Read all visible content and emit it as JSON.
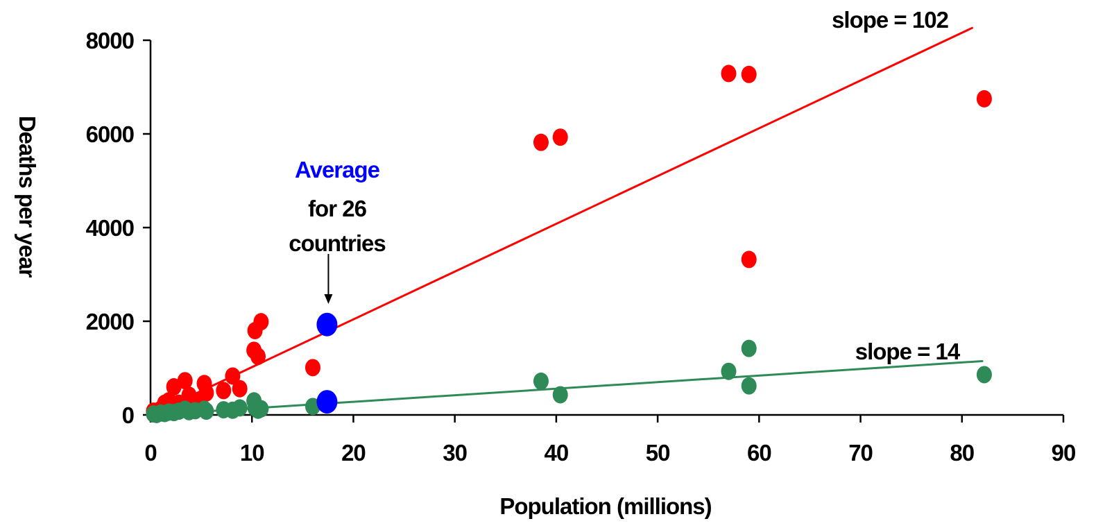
{
  "chart_data": {
    "type": "scatter",
    "xlabel": "Population (millions)",
    "ylabel": "Deaths per year",
    "xlim": [
      0,
      90
    ],
    "ylim": [
      0,
      8000
    ],
    "x_ticks": [
      "0",
      "10",
      "20",
      "30",
      "40",
      "50",
      "60",
      "70",
      "80",
      "90"
    ],
    "y_ticks": [
      "0",
      "2000",
      "4000",
      "6000",
      "8000"
    ],
    "grid": false,
    "series": [
      {
        "color": "#ff0000",
        "points": [
          [
            0.3,
            80
          ],
          [
            0.6,
            60
          ],
          [
            1.0,
            120
          ],
          [
            1.4,
            250
          ],
          [
            1.8,
            300
          ],
          [
            2.3,
            600
          ],
          [
            2.8,
            250
          ],
          [
            3.4,
            730
          ],
          [
            3.8,
            420
          ],
          [
            4.4,
            300
          ],
          [
            5.3,
            670
          ],
          [
            5.5,
            470
          ],
          [
            7.2,
            520
          ],
          [
            8.1,
            830
          ],
          [
            8.8,
            560
          ],
          [
            10.2,
            1380
          ],
          [
            10.3,
            1800
          ],
          [
            10.6,
            1250
          ],
          [
            10.9,
            1990
          ],
          [
            16.0,
            1010
          ],
          [
            38.5,
            5820
          ],
          [
            40.4,
            5930
          ],
          [
            57.0,
            7290
          ],
          [
            59.0,
            7270
          ],
          [
            59.0,
            3320
          ],
          [
            82.2,
            6750
          ]
        ],
        "fit": {
          "slope": 102,
          "x_range": [
            0.3,
            81
          ],
          "label": "slope = 102"
        }
      },
      {
        "color": "#2e8b57",
        "points": [
          [
            0.3,
            20
          ],
          [
            0.6,
            10
          ],
          [
            1.0,
            40
          ],
          [
            1.4,
            30
          ],
          [
            1.8,
            60
          ],
          [
            2.3,
            50
          ],
          [
            2.8,
            80
          ],
          [
            3.4,
            120
          ],
          [
            3.8,
            70
          ],
          [
            4.4,
            90
          ],
          [
            5.3,
            120
          ],
          [
            5.5,
            80
          ],
          [
            7.2,
            110
          ],
          [
            8.1,
            100
          ],
          [
            8.8,
            150
          ],
          [
            10.2,
            300
          ],
          [
            10.3,
            150
          ],
          [
            10.6,
            100
          ],
          [
            10.9,
            130
          ],
          [
            16.0,
            180
          ],
          [
            38.5,
            720
          ],
          [
            40.4,
            430
          ],
          [
            57.0,
            930
          ],
          [
            59.0,
            1420
          ],
          [
            59.0,
            620
          ],
          [
            82.2,
            860
          ]
        ],
        "fit": {
          "slope": 14,
          "x_range": [
            0.3,
            82
          ],
          "label": "slope = 14"
        }
      },
      {
        "color": "#0000ff",
        "points": [
          [
            17.4,
            1930
          ],
          [
            17.4,
            280
          ]
        ]
      }
    ],
    "annotations": {
      "average_word": "Average",
      "average_rest_line1": "for 26",
      "average_rest_line2": "countries"
    }
  }
}
